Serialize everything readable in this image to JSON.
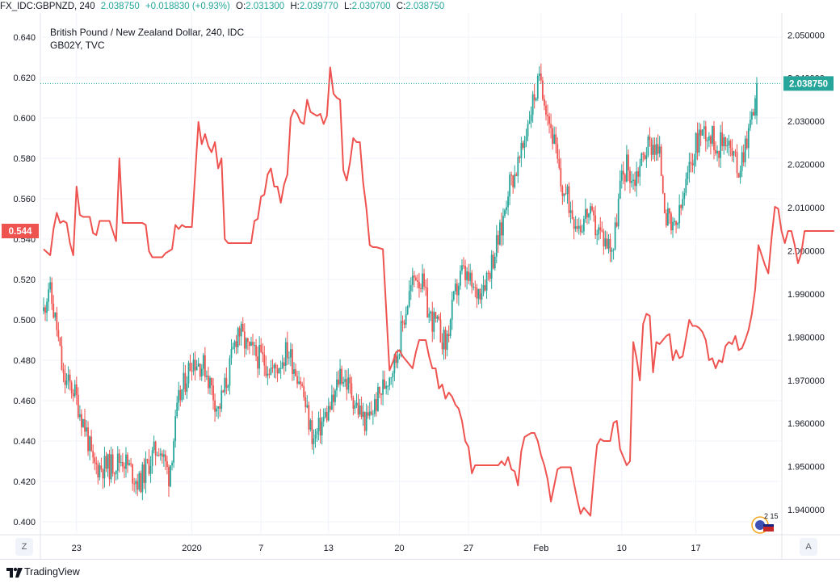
{
  "topbar": {
    "symbol": "FX_IDC:GBPNZD, 240",
    "last": "2.038750",
    "change": "+0.018830 (+0.93%)",
    "o_label": "O:",
    "o": "2.031300",
    "h_label": "H:",
    "h": "2.039770",
    "l_label": "L:",
    "l": "2.030700",
    "c_label": "C:",
    "c": "2.038750"
  },
  "legend": {
    "title": "British Pound / New Zealand Dollar, 240, IDC",
    "overlay": "GB02Y, TVC"
  },
  "footer": {
    "brand": "TradingView",
    "z_button": "Z",
    "a_button": "A",
    "badge_count": "2 15"
  },
  "colors": {
    "up": "#26a69a",
    "down": "#ef5350",
    "overlay": "#ef5350",
    "grid": "#f0f3fa",
    "axis_text": "#131722",
    "price_label_bg": "#26a69a",
    "overlay_label_bg": "#ef5350"
  },
  "chart_data": {
    "type": "candlestick",
    "left_axis": {
      "ticks": [
        "0.640",
        "0.620",
        "0.600",
        "0.580",
        "0.560",
        "0.540",
        "0.520",
        "0.500",
        "0.480",
        "0.460",
        "0.440",
        "0.420",
        "0.400"
      ],
      "range": [
        0.394,
        0.652
      ]
    },
    "right_axis": {
      "ticks": [
        "2.050000",
        "2.040000",
        "2.030000",
        "2.020000",
        "2.010000",
        "2.000000",
        "1.990000",
        "1.980000",
        "1.970000",
        "1.960000",
        "1.950000",
        "1.940000"
      ],
      "range": [
        1.9344,
        2.0551
      ]
    },
    "x_ticks": [
      "23",
      "2020",
      "7",
      "13",
      "20",
      "27",
      "Feb",
      "10",
      "17"
    ],
    "last_price_label": "2.038750",
    "overlay_last_label": "0.544",
    "series": [
      {
        "name": "GBPNZD",
        "axis": "right",
        "close_anchors": [
          [
            0,
            1.986
          ],
          [
            3,
            1.992
          ],
          [
            8,
            1.982
          ],
          [
            12,
            1.97
          ],
          [
            18,
            1.968
          ],
          [
            26,
            1.958
          ],
          [
            30,
            1.95
          ],
          [
            40,
            1.95
          ],
          [
            48,
            1.952
          ],
          [
            58,
            1.946
          ],
          [
            64,
            1.951
          ],
          [
            70,
            1.955
          ],
          [
            76,
            1.948
          ],
          [
            82,
            1.965
          ],
          [
            90,
            1.975
          ],
          [
            98,
            1.973
          ],
          [
            106,
            1.963
          ],
          [
            112,
            1.971
          ],
          [
            118,
            1.982
          ],
          [
            124,
            1.977
          ],
          [
            132,
            1.975
          ],
          [
            140,
            1.972
          ],
          [
            148,
            1.977
          ],
          [
            156,
            1.97
          ],
          [
            160,
            1.962
          ],
          [
            164,
            1.956
          ],
          [
            170,
            1.961
          ],
          [
            176,
            1.965
          ],
          [
            180,
            1.972
          ],
          [
            186,
            1.968
          ],
          [
            190,
            1.964
          ],
          [
            196,
            1.96
          ],
          [
            202,
            1.965
          ],
          [
            208,
            1.97
          ],
          [
            214,
            1.975
          ],
          [
            218,
            1.983
          ],
          [
            222,
            1.99
          ],
          [
            226,
            1.995
          ],
          [
            230,
            1.992
          ],
          [
            234,
            1.985
          ],
          [
            238,
            1.983
          ],
          [
            242,
            1.98
          ],
          [
            244,
            1.978
          ],
          [
            246,
            1.982
          ],
          [
            250,
            1.99
          ],
          [
            254,
            1.995
          ],
          [
            258,
            1.993
          ],
          [
            262,
            1.99
          ],
          [
            266,
            1.992
          ],
          [
            270,
            1.995
          ],
          [
            274,
            2.0
          ],
          [
            278,
            2.005
          ],
          [
            282,
            2.015
          ],
          [
            286,
            2.018
          ],
          [
            290,
            2.022
          ],
          [
            294,
            2.03
          ],
          [
            298,
            2.036
          ],
          [
            302,
            2.04
          ],
          [
            306,
            2.032
          ],
          [
            310,
            2.025
          ],
          [
            314,
            2.015
          ],
          [
            318,
            2.012
          ],
          [
            322,
            2.008
          ],
          [
            326,
            2.006
          ],
          [
            330,
            2.009
          ],
          [
            334,
            2.006
          ],
          [
            338,
            2.004
          ],
          [
            342,
            2.002
          ],
          [
            346,
            2.001
          ],
          [
            350,
            2.015
          ],
          [
            354,
            2.02
          ],
          [
            358,
            2.016
          ],
          [
            362,
            2.02
          ],
          [
            366,
            2.024
          ],
          [
            370,
            2.025
          ],
          [
            374,
            2.022
          ],
          [
            378,
            2.008
          ],
          [
            382,
            2.004
          ],
          [
            386,
            2.008
          ],
          [
            390,
            2.015
          ],
          [
            394,
            2.022
          ],
          [
            398,
            2.027
          ],
          [
            402,
            2.028
          ],
          [
            406,
            2.026
          ],
          [
            410,
            2.024
          ],
          [
            414,
            2.027
          ],
          [
            418,
            2.022
          ],
          [
            422,
            2.019
          ],
          [
            426,
            2.025
          ],
          [
            430,
            2.031
          ],
          [
            433,
            2.0388
          ]
        ]
      },
      {
        "name": "GB02Y",
        "axis": "left",
        "points": [
          [
            0,
            0.535
          ],
          [
            4,
            0.532
          ],
          [
            6,
            0.545
          ],
          [
            8,
            0.553
          ],
          [
            10,
            0.548
          ],
          [
            12,
            0.549
          ],
          [
            14,
            0.548
          ],
          [
            16,
            0.538
          ],
          [
            18,
            0.532
          ],
          [
            20,
            0.566
          ],
          [
            22,
            0.552
          ],
          [
            24,
            0.551
          ],
          [
            28,
            0.551
          ],
          [
            30,
            0.543
          ],
          [
            32,
            0.542
          ],
          [
            34,
            0.549
          ],
          [
            38,
            0.549
          ],
          [
            40,
            0.549
          ],
          [
            42,
            0.544
          ],
          [
            44,
            0.539
          ],
          [
            46,
            0.58
          ],
          [
            48,
            0.548
          ],
          [
            50,
            0.548
          ],
          [
            60,
            0.548
          ],
          [
            62,
            0.547
          ],
          [
            64,
            0.534
          ],
          [
            66,
            0.531
          ],
          [
            68,
            0.531
          ],
          [
            72,
            0.531
          ],
          [
            74,
            0.533
          ],
          [
            76,
            0.534
          ],
          [
            78,
            0.535
          ],
          [
            80,
            0.547
          ],
          [
            82,
            0.545
          ],
          [
            84,
            0.547
          ],
          [
            86,
            0.546
          ],
          [
            88,
            0.546
          ],
          [
            90,
            0.546
          ],
          [
            92,
            0.572
          ],
          [
            94,
            0.598
          ],
          [
            96,
            0.587
          ],
          [
            98,
            0.592
          ],
          [
            100,
            0.586
          ],
          [
            102,
            0.583
          ],
          [
            104,
            0.588
          ],
          [
            106,
            0.575
          ],
          [
            108,
            0.58
          ],
          [
            110,
            0.54
          ],
          [
            112,
            0.538
          ],
          [
            114,
            0.538
          ],
          [
            126,
            0.538
          ],
          [
            128,
            0.549
          ],
          [
            130,
            0.55
          ],
          [
            132,
            0.561
          ],
          [
            134,
            0.562
          ],
          [
            136,
            0.572
          ],
          [
            138,
            0.575
          ],
          [
            140,
            0.566
          ],
          [
            142,
            0.566
          ],
          [
            144,
            0.558
          ],
          [
            146,
            0.567
          ],
          [
            148,
            0.572
          ],
          [
            150,
            0.6
          ],
          [
            152,
            0.604
          ],
          [
            154,
            0.602
          ],
          [
            156,
            0.598
          ],
          [
            158,
            0.597
          ],
          [
            160,
            0.609
          ],
          [
            162,
            0.603
          ],
          [
            164,
            0.602
          ],
          [
            166,
            0.601
          ],
          [
            168,
            0.602
          ],
          [
            170,
            0.597
          ],
          [
            172,
            0.601
          ],
          [
            174,
            0.625
          ],
          [
            176,
            0.612
          ],
          [
            178,
            0.61
          ],
          [
            180,
            0.609
          ],
          [
            182,
            0.574
          ],
          [
            184,
            0.569
          ],
          [
            186,
            0.578
          ],
          [
            188,
            0.59
          ],
          [
            190,
            0.588
          ],
          [
            192,
            0.588
          ],
          [
            194,
            0.568
          ],
          [
            196,
            0.555
          ],
          [
            198,
            0.537
          ],
          [
            200,
            0.536
          ],
          [
            202,
            0.536
          ],
          [
            206,
            0.535
          ],
          [
            210,
            0.475
          ],
          [
            212,
            0.479
          ],
          [
            214,
            0.484
          ],
          [
            216,
            0.485
          ],
          [
            218,
            0.482
          ],
          [
            220,
            0.48
          ],
          [
            222,
            0.478
          ],
          [
            224,
            0.476
          ],
          [
            226,
            0.484
          ],
          [
            228,
            0.49
          ],
          [
            232,
            0.49
          ],
          [
            234,
            0.482
          ],
          [
            236,
            0.476
          ],
          [
            238,
            0.476
          ],
          [
            240,
            0.466
          ],
          [
            242,
            0.468
          ],
          [
            244,
            0.461
          ],
          [
            246,
            0.464
          ],
          [
            248,
            0.462
          ],
          [
            250,
            0.458
          ],
          [
            252,
            0.456
          ],
          [
            254,
            0.45
          ],
          [
            256,
            0.44
          ],
          [
            258,
            0.437
          ],
          [
            260,
            0.424
          ],
          [
            262,
            0.428
          ],
          [
            264,
            0.428
          ],
          [
            276,
            0.428
          ],
          [
            278,
            0.43
          ],
          [
            280,
            0.428
          ],
          [
            282,
            0.432
          ],
          [
            284,
            0.426
          ],
          [
            286,
            0.425
          ],
          [
            288,
            0.418
          ],
          [
            290,
            0.435
          ],
          [
            292,
            0.442
          ],
          [
            294,
            0.443
          ],
          [
            296,
            0.444
          ],
          [
            298,
            0.444
          ],
          [
            300,
            0.44
          ],
          [
            302,
            0.433
          ],
          [
            304,
            0.428
          ],
          [
            306,
            0.421
          ],
          [
            308,
            0.41
          ],
          [
            310,
            0.418
          ],
          [
            312,
            0.426
          ],
          [
            314,
            0.427
          ],
          [
            320,
            0.427
          ],
          [
            322,
            0.419
          ],
          [
            324,
            0.411
          ],
          [
            326,
            0.404
          ],
          [
            328,
            0.407
          ],
          [
            330,
            0.405
          ],
          [
            332,
            0.403
          ],
          [
            334,
            0.422
          ],
          [
            336,
            0.438
          ],
          [
            338,
            0.441
          ],
          [
            340,
            0.44
          ],
          [
            344,
            0.44
          ],
          [
            346,
            0.449
          ],
          [
            348,
            0.45
          ],
          [
            350,
            0.436
          ],
          [
            352,
            0.432
          ],
          [
            354,
            0.428
          ],
          [
            356,
            0.43
          ],
          [
            358,
            0.489
          ],
          [
            360,
            0.481
          ],
          [
            362,
            0.47
          ],
          [
            364,
            0.498
          ],
          [
            366,
            0.503
          ],
          [
            368,
            0.502
          ],
          [
            370,
            0.474
          ],
          [
            372,
            0.489
          ],
          [
            374,
            0.488
          ],
          [
            376,
            0.49
          ],
          [
            378,
            0.492
          ],
          [
            380,
            0.493
          ],
          [
            382,
            0.48
          ],
          [
            384,
            0.485
          ],
          [
            386,
            0.481
          ],
          [
            388,
            0.482
          ],
          [
            390,
            0.491
          ],
          [
            392,
            0.5
          ],
          [
            394,
            0.497
          ],
          [
            396,
            0.497
          ],
          [
            398,
            0.496
          ],
          [
            400,
            0.494
          ],
          [
            402,
            0.49
          ],
          [
            404,
            0.48
          ],
          [
            406,
            0.481
          ],
          [
            408,
            0.476
          ],
          [
            410,
            0.48
          ],
          [
            412,
            0.479
          ],
          [
            414,
            0.487
          ],
          [
            416,
            0.489
          ],
          [
            418,
            0.488
          ],
          [
            420,
            0.492
          ],
          [
            422,
            0.485
          ],
          [
            424,
            0.486
          ],
          [
            426,
            0.49
          ],
          [
            428,
            0.495
          ],
          [
            430,
            0.503
          ],
          [
            432,
            0.515
          ],
          [
            434,
            0.537
          ],
          [
            436,
            0.532
          ],
          [
            438,
            0.527
          ],
          [
            440,
            0.523
          ],
          [
            442,
            0.541
          ],
          [
            444,
            0.556
          ],
          [
            446,
            0.555
          ],
          [
            448,
            0.544
          ],
          [
            450,
            0.538
          ],
          [
            452,
            0.544
          ],
          [
            454,
            0.544
          ],
          [
            456,
            0.537
          ],
          [
            458,
            0.528
          ],
          [
            460,
            0.533
          ],
          [
            462,
            0.544
          ],
          [
            464,
            0.544
          ],
          [
            480,
            0.544
          ]
        ]
      }
    ]
  }
}
